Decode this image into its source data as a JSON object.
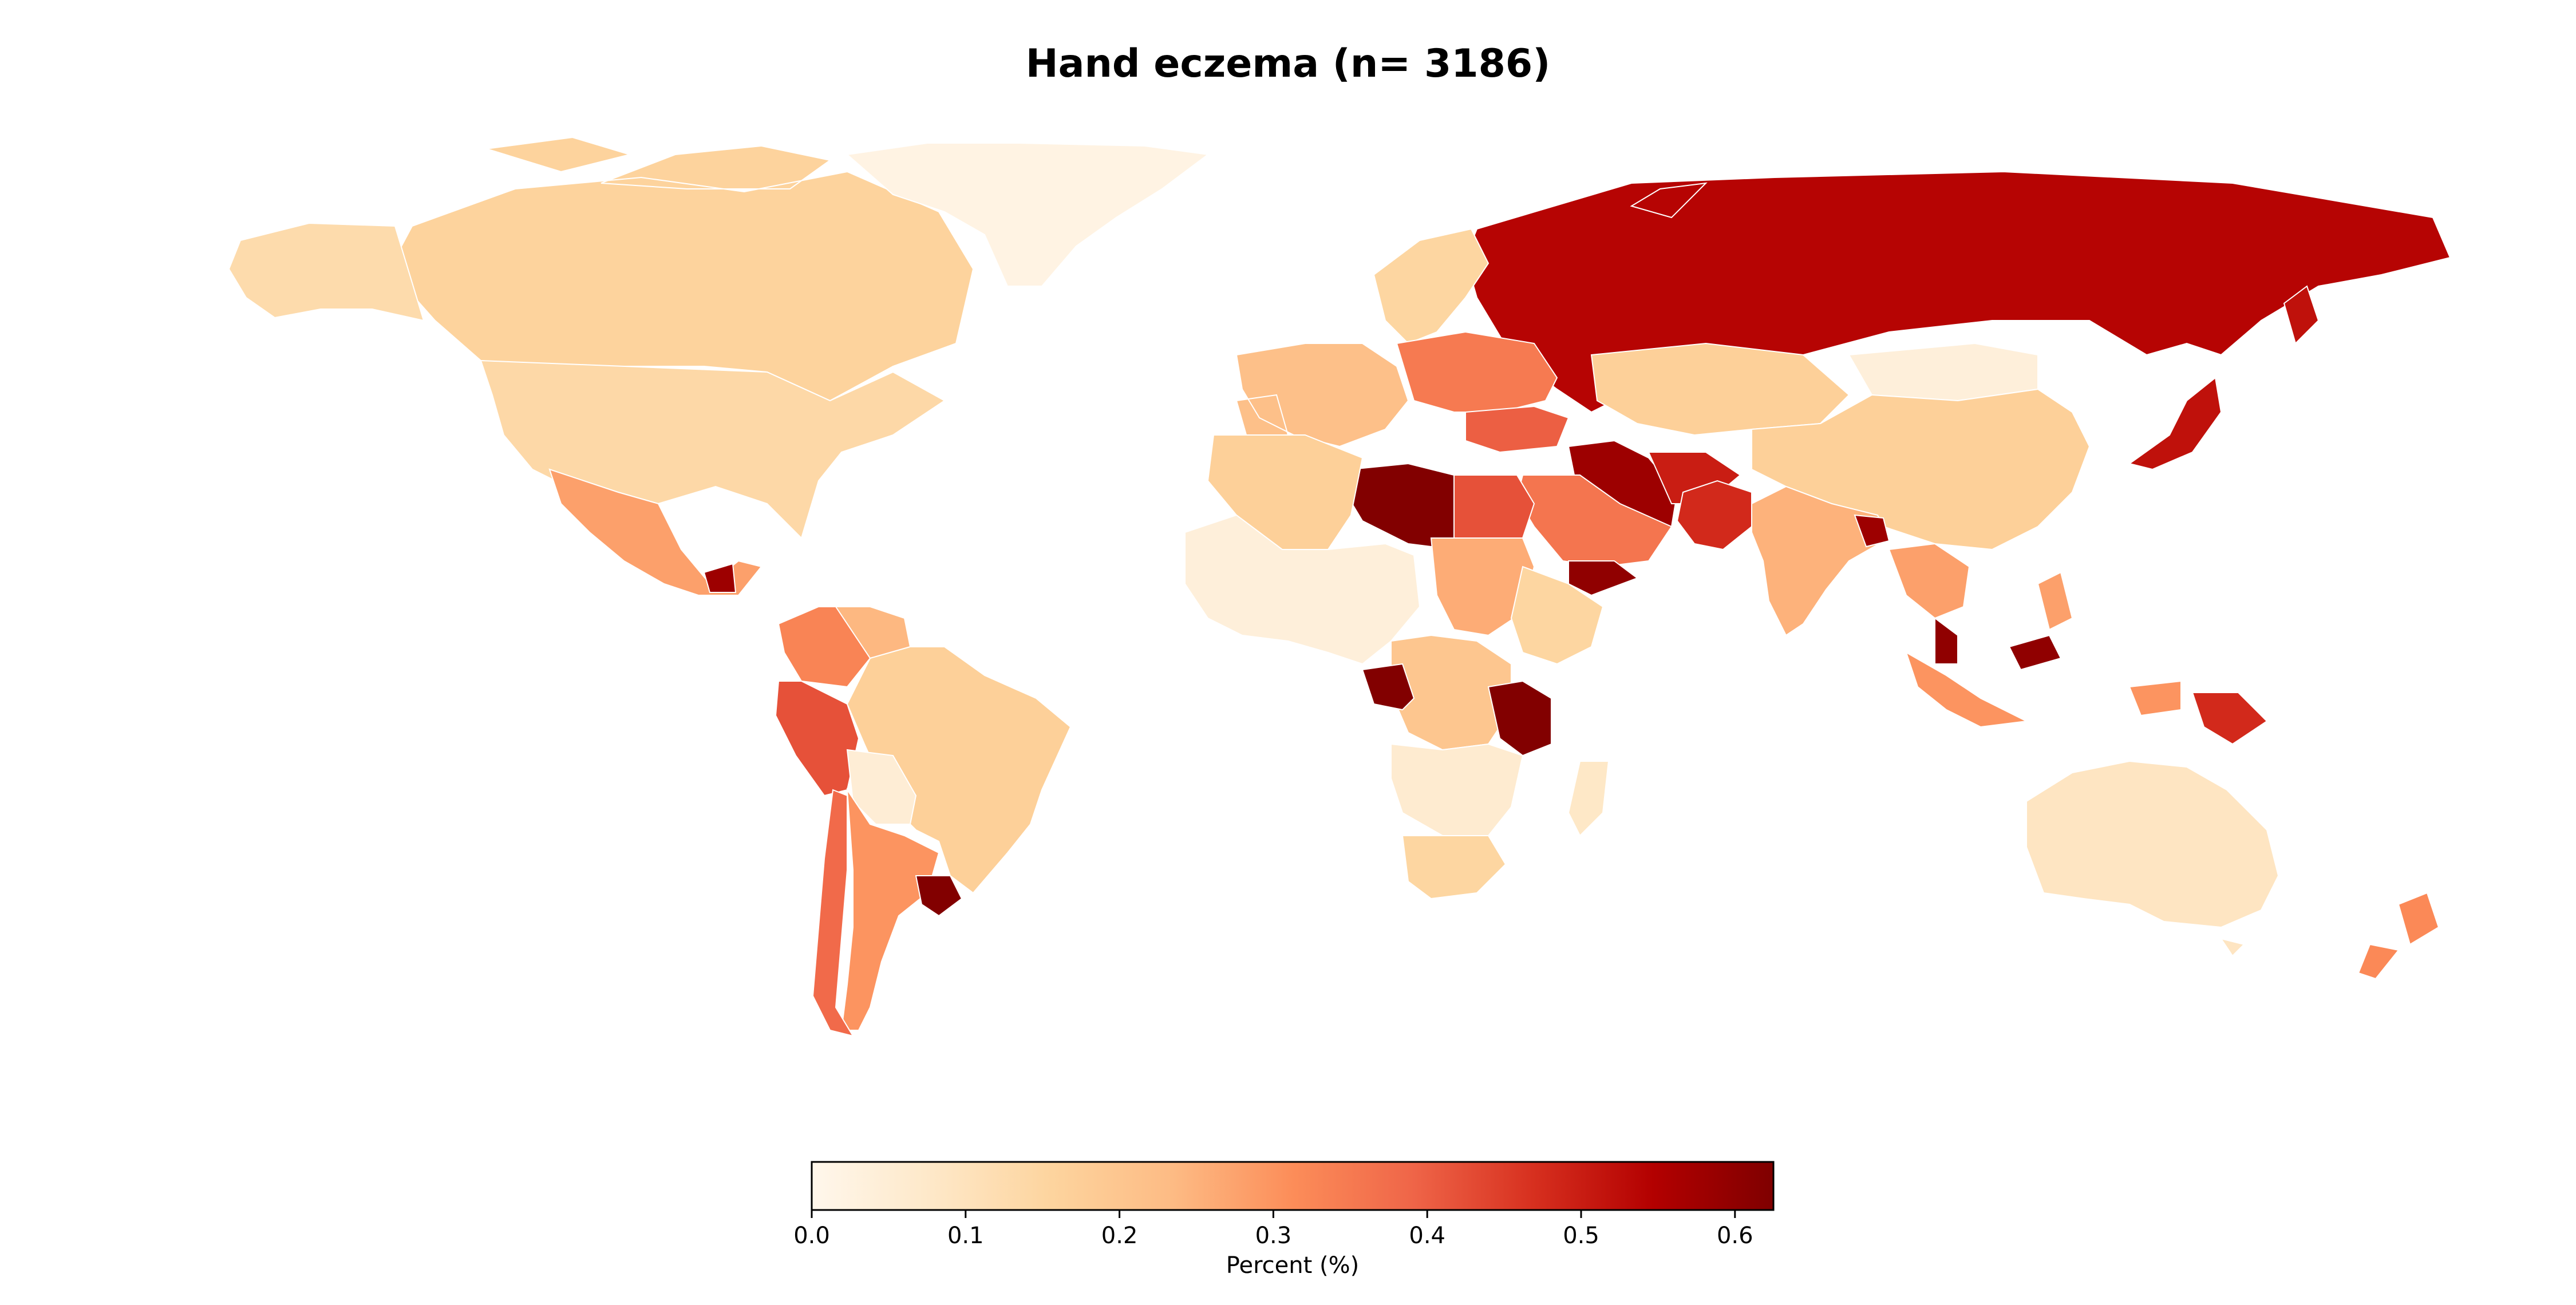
{
  "map": {
    "title": "Hand eczema (n= 3186)",
    "colorbar": {
      "label": "Percent (%)",
      "min": 0.0,
      "max": 0.625,
      "ticks": [
        "0.0",
        "0.1",
        "0.2",
        "0.3",
        "0.4",
        "0.5",
        "0.6"
      ],
      "tick_values": [
        0.0,
        0.1,
        0.2,
        0.3,
        0.4,
        0.5,
        0.6
      ],
      "colormap": "OrRd",
      "colors": [
        "#fff7ec",
        "#fee8c8",
        "#fdd49e",
        "#fdbb84",
        "#fc8d59",
        "#ef6548",
        "#d7301f",
        "#b30000",
        "#7f0000"
      ]
    },
    "regions": [
      {
        "name": "Canada",
        "value": 0.16
      },
      {
        "name": "United States",
        "value": 0.14
      },
      {
        "name": "Alaska",
        "value": 0.13
      },
      {
        "name": "Greenland",
        "value": 0.02
      },
      {
        "name": "Mexico",
        "value": 0.28
      },
      {
        "name": "Guatemala",
        "value": 0.58
      },
      {
        "name": "Colombia",
        "value": 0.33
      },
      {
        "name": "Venezuela",
        "value": 0.24
      },
      {
        "name": "Peru",
        "value": 0.42
      },
      {
        "name": "Brazil",
        "value": 0.17
      },
      {
        "name": "Bolivia",
        "value": 0.05
      },
      {
        "name": "Argentina",
        "value": 0.3
      },
      {
        "name": "Chile",
        "value": 0.38
      },
      {
        "name": "Uruguay",
        "value": 0.62
      },
      {
        "name": "Russia",
        "value": 0.54
      },
      {
        "name": "Scandinavia",
        "value": 0.15
      },
      {
        "name": "Western Europe",
        "value": 0.22
      },
      {
        "name": "Eastern Europe",
        "value": 0.35
      },
      {
        "name": "Turkey",
        "value": 0.4
      },
      {
        "name": "Iran",
        "value": 0.58
      },
      {
        "name": "Afghanistan",
        "value": 0.5
      },
      {
        "name": "Pakistan",
        "value": 0.48
      },
      {
        "name": "Kazakhstan",
        "value": 0.17
      },
      {
        "name": "Mongolia",
        "value": 0.04
      },
      {
        "name": "China",
        "value": 0.17
      },
      {
        "name": "India",
        "value": 0.25
      },
      {
        "name": "Bangladesh",
        "value": 0.58
      },
      {
        "name": "Saudi Arabia",
        "value": 0.36
      },
      {
        "name": "Yemen",
        "value": 0.6
      },
      {
        "name": "Egypt",
        "value": 0.42
      },
      {
        "name": "Libya",
        "value": 0.62
      },
      {
        "name": "Algeria",
        "value": 0.17
      },
      {
        "name": "West Africa",
        "value": 0.04
      },
      {
        "name": "Sudan",
        "value": 0.26
      },
      {
        "name": "Ethiopia",
        "value": 0.15
      },
      {
        "name": "Congo",
        "value": 0.2
      },
      {
        "name": "Angola",
        "value": 0.62
      },
      {
        "name": "Tanzania",
        "value": 0.62
      },
      {
        "name": "Southern Africa",
        "value": 0.06
      },
      {
        "name": "South Africa",
        "value": 0.15
      },
      {
        "name": "Madagascar",
        "value": 0.08
      },
      {
        "name": "Japan",
        "value": 0.52
      },
      {
        "name": "Southeast Asia",
        "value": 0.28
      },
      {
        "name": "Malaysia",
        "value": 0.6
      },
      {
        "name": "Indonesia",
        "value": 0.3
      },
      {
        "name": "Papua New Guinea",
        "value": 0.48
      },
      {
        "name": "Australia",
        "value": 0.09
      },
      {
        "name": "New Zealand",
        "value": 0.32
      }
    ]
  }
}
